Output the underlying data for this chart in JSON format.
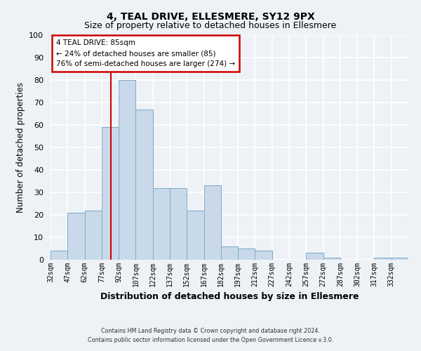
{
  "title": "4, TEAL DRIVE, ELLESMERE, SY12 9PX",
  "subtitle": "Size of property relative to detached houses in Ellesmere",
  "xlabel": "Distribution of detached houses by size in Ellesmere",
  "ylabel": "Number of detached properties",
  "bar_color": "#c9d9ea",
  "bar_edge_color": "#7aaac8",
  "background_color": "#eef2f7",
  "plot_bg_color": "#eef2f7",
  "grid_color": "#ffffff",
  "ylim": [
    0,
    100
  ],
  "yticks": [
    0,
    10,
    20,
    30,
    40,
    50,
    60,
    70,
    80,
    90,
    100
  ],
  "bin_labels": [
    "32sqm",
    "47sqm",
    "62sqm",
    "77sqm",
    "92sqm",
    "107sqm",
    "122sqm",
    "137sqm",
    "152sqm",
    "167sqm",
    "182sqm",
    "197sqm",
    "212sqm",
    "227sqm",
    "242sqm",
    "257sqm",
    "272sqm",
    "287sqm",
    "302sqm",
    "317sqm",
    "332sqm"
  ],
  "bin_edges": [
    32,
    47,
    62,
    77,
    92,
    107,
    122,
    137,
    152,
    167,
    182,
    197,
    212,
    227,
    242,
    257,
    272,
    287,
    302,
    317,
    332
  ],
  "bar_heights": [
    4,
    21,
    22,
    59,
    80,
    67,
    32,
    32,
    22,
    33,
    6,
    5,
    4,
    0,
    0,
    3,
    1,
    0,
    0,
    1,
    1
  ],
  "vline_x": 85,
  "vline_color": "#cc0000",
  "annotation_title": "4 TEAL DRIVE: 85sqm",
  "annotation_line1": "← 24% of detached houses are smaller (85)",
  "annotation_line2": "76% of semi-detached houses are larger (274) →",
  "annotation_box_facecolor": "#ffffff",
  "annotation_box_edgecolor": "#cc0000",
  "footer1": "Contains HM Land Registry data © Crown copyright and database right 2024.",
  "footer2": "Contains public sector information licensed under the Open Government Licence v.3.0."
}
